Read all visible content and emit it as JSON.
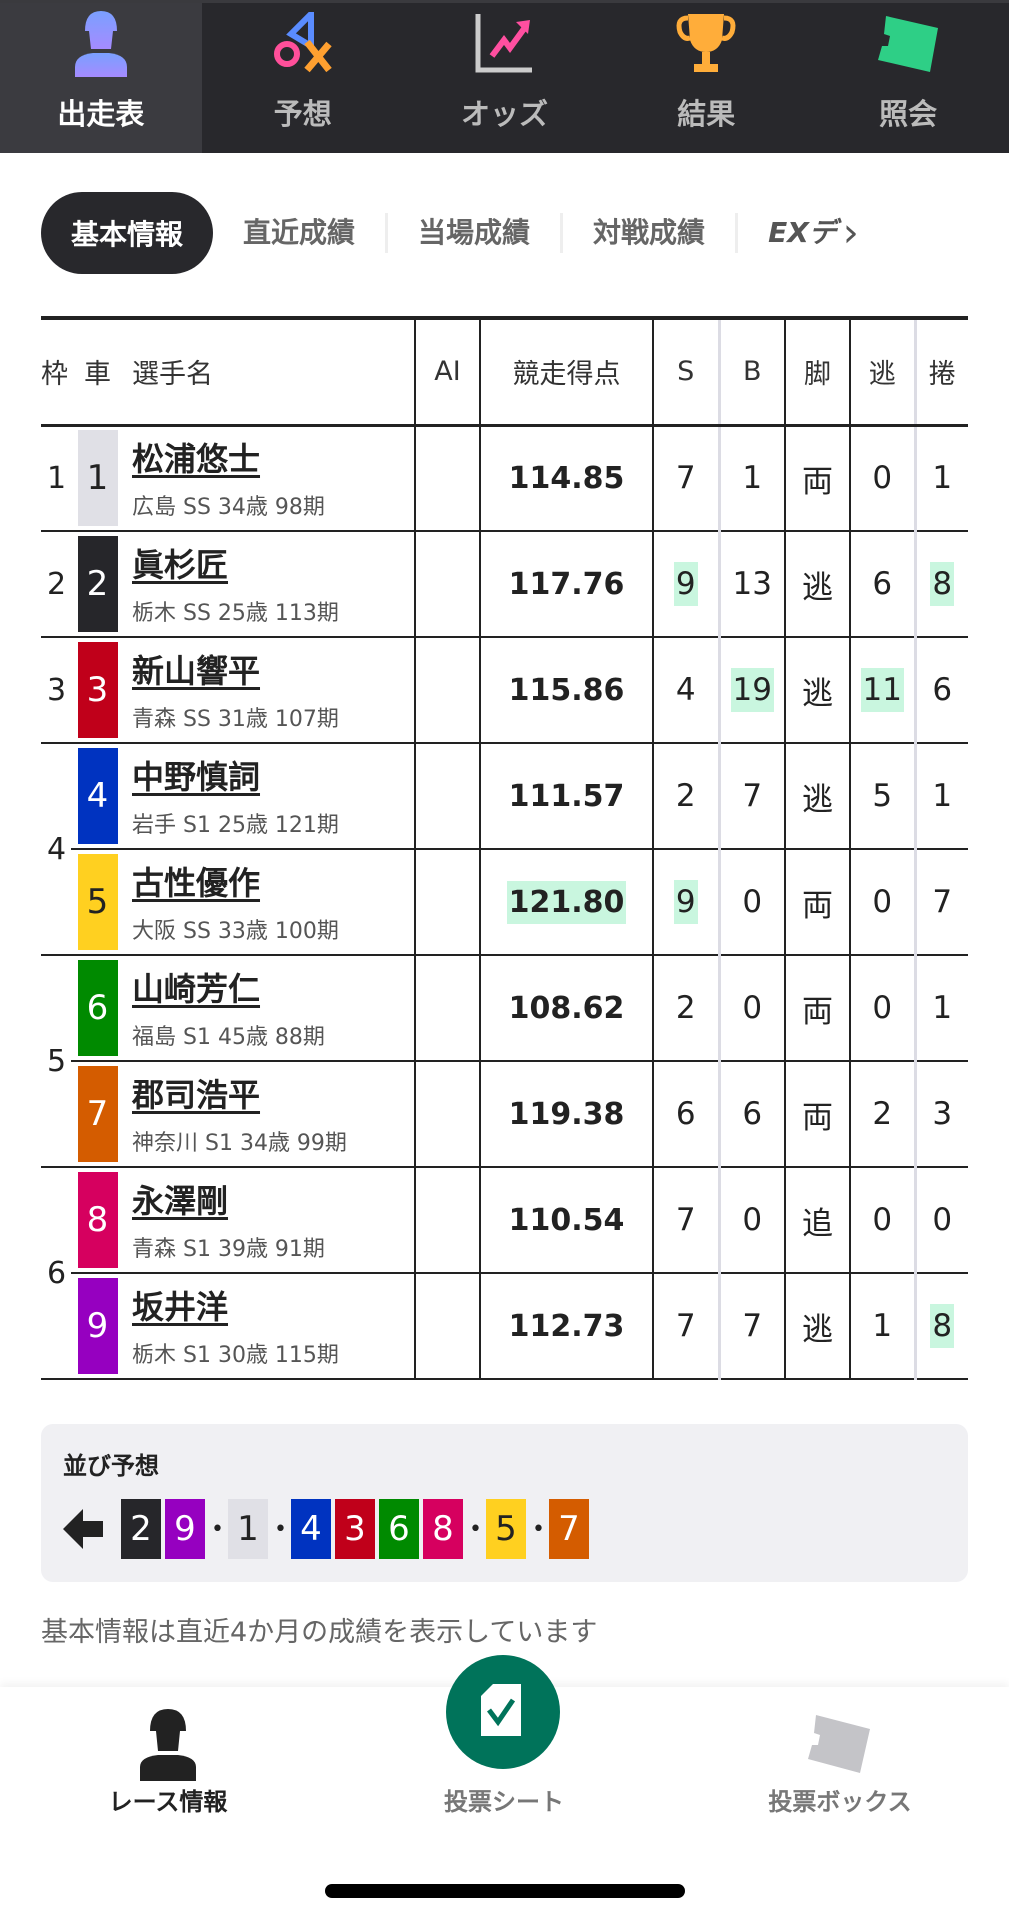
{
  "topnav": [
    {
      "label": "出走表",
      "icon": "rider-icon",
      "active": true
    },
    {
      "label": "予想",
      "icon": "prediction-symbols-icon"
    },
    {
      "label": "オッズ",
      "icon": "chart-up-icon"
    },
    {
      "label": "結果",
      "icon": "trophy-icon"
    },
    {
      "label": "照会",
      "icon": "ticket-icon"
    }
  ],
  "subtabs": [
    "基本情報",
    "直近成績",
    "当場成績",
    "対戦成績",
    "EXデ"
  ],
  "table": {
    "headers": {
      "frame": "枠",
      "car": "車",
      "name": "選手名",
      "ai": "AI",
      "score": "競走得点",
      "s": "S",
      "b": "B",
      "leg": "脚",
      "nige": "逃",
      "makuri": "捲"
    },
    "rows": [
      {
        "frame": "1",
        "car": "1",
        "name": "松浦悠士",
        "info": "広島 SS 34歳 98期",
        "ai": "",
        "score": "114.85",
        "s": "7",
        "b": "1",
        "leg": "両",
        "nige": "0",
        "makuri": "1"
      },
      {
        "frame": "2",
        "car": "2",
        "name": "眞杉匠",
        "info": "栃木 SS 25歳 113期",
        "ai": "",
        "score": "117.76",
        "s": "9",
        "b": "13",
        "leg": "逃",
        "nige": "6",
        "makuri": "8"
      },
      {
        "frame": "3",
        "car": "3",
        "name": "新山響平",
        "info": "青森 SS 31歳 107期",
        "ai": "",
        "score": "115.86",
        "s": "4",
        "b": "19",
        "leg": "逃",
        "nige": "11",
        "makuri": "6"
      },
      {
        "frame": "4",
        "car": "4",
        "name": "中野慎詞",
        "info": "岩手 S1 25歳 121期",
        "ai": "",
        "score": "111.57",
        "s": "2",
        "b": "7",
        "leg": "逃",
        "nige": "5",
        "makuri": "1"
      },
      {
        "frame": "4",
        "car": "5",
        "name": "古性優作",
        "info": "大阪 SS 33歳 100期",
        "ai": "",
        "score": "121.80",
        "s": "9",
        "b": "0",
        "leg": "両",
        "nige": "0",
        "makuri": "7"
      },
      {
        "frame": "5",
        "car": "6",
        "name": "山崎芳仁",
        "info": "福島 S1 45歳 88期",
        "ai": "",
        "score": "108.62",
        "s": "2",
        "b": "0",
        "leg": "両",
        "nige": "0",
        "makuri": "1"
      },
      {
        "frame": "5",
        "car": "7",
        "name": "郡司浩平",
        "info": "神奈川 S1 34歳 99期",
        "ai": "",
        "score": "119.38",
        "s": "6",
        "b": "6",
        "leg": "両",
        "nige": "2",
        "makuri": "3"
      },
      {
        "frame": "6",
        "car": "8",
        "name": "永澤剛",
        "info": "青森 S1 39歳 91期",
        "ai": "",
        "score": "110.54",
        "s": "7",
        "b": "0",
        "leg": "追",
        "nige": "0",
        "makuri": "0"
      },
      {
        "frame": "6",
        "car": "9",
        "name": "坂井洋",
        "info": "栃木 S1 30歳 115期",
        "ai": "",
        "score": "112.73",
        "s": "7",
        "b": "7",
        "leg": "逃",
        "nige": "1",
        "makuri": "8"
      }
    ],
    "highlight_color": "#c9f6df"
  },
  "car_colors": {
    "1": [
      "#e0e0e6",
      "#222"
    ],
    "2": [
      "#26262a",
      "#fff"
    ],
    "3": [
      "#c0001a",
      "#fff"
    ],
    "4": [
      "#0033c0",
      "#fff"
    ],
    "5": [
      "#ffd020",
      "#222"
    ],
    "6": [
      "#008a00",
      "#fff"
    ],
    "7": [
      "#d45c00",
      "#fff"
    ],
    "8": [
      "#d6005f",
      "#fff"
    ],
    "9": [
      "#9600c0",
      "#fff"
    ]
  },
  "line_prediction": {
    "title": "並び予想",
    "groups": [
      [
        "2",
        "9"
      ],
      [
        "1"
      ],
      [
        "4",
        "3",
        "6",
        "8"
      ],
      [
        "5"
      ],
      [
        "7"
      ]
    ]
  },
  "note": "基本情報は直近4か月の成績を表示しています",
  "bottom_nav": {
    "race_info": "レース情報",
    "bet_sheet": "投票シート",
    "bet_box": "投票ボックス"
  }
}
